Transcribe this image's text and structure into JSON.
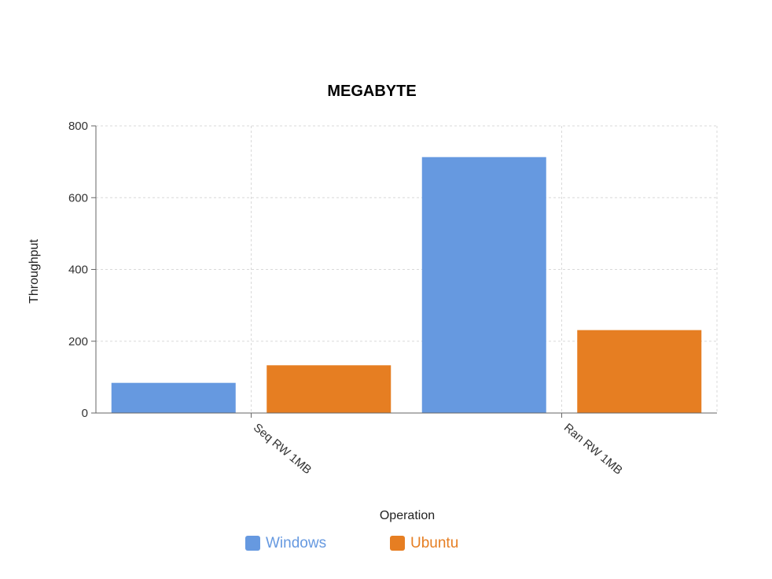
{
  "chart_data": {
    "type": "bar",
    "title": "MEGABYTE",
    "xlabel": "Operation",
    "ylabel": "Throughput",
    "categories": [
      "Seq RW 1MB",
      "Ran RW 1MB"
    ],
    "series": [
      {
        "name": "Windows",
        "color": "#6699e0",
        "values": [
          84,
          713
        ]
      },
      {
        "name": "Ubuntu",
        "color": "#e67e22",
        "values": [
          133,
          231
        ]
      }
    ],
    "ylim": [
      0,
      800
    ],
    "yticks": [
      0,
      200,
      400,
      600,
      800
    ],
    "ytick_labels": [
      "0",
      "200",
      "400",
      "600",
      "800"
    ],
    "grid": true,
    "legend_position": "bottom-center"
  }
}
